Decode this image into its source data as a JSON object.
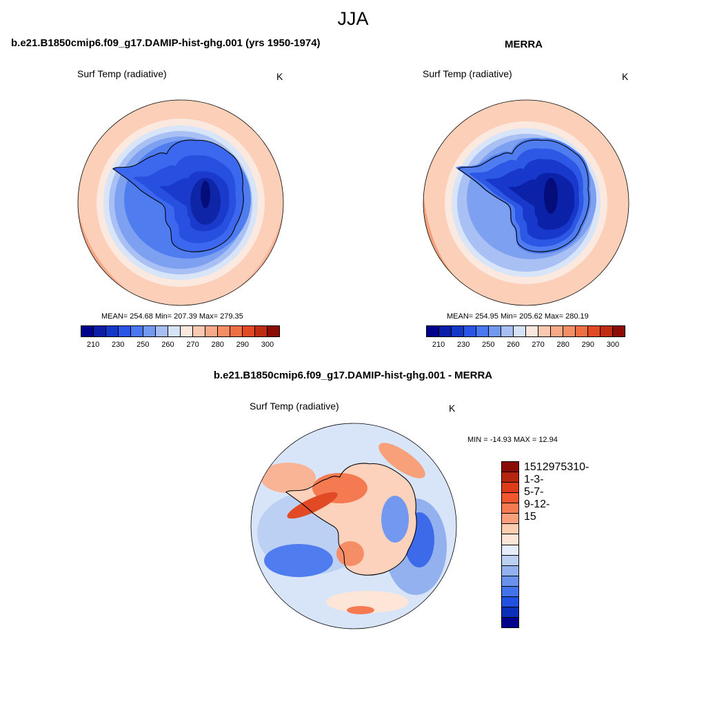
{
  "figure": {
    "title": "JJA"
  },
  "panels": {
    "model": {
      "title": "b.e21.B1850cmip6.f09_g17.DAMIP-hist-ghg.001 (yrs 1950-1974)",
      "variable": "Surf Temp (radiative)",
      "units": "K",
      "stats": "MEAN= 254.68  Min= 207.39  Max= 279.35"
    },
    "obs": {
      "title": "MERRA",
      "variable": "Surf Temp (radiative)",
      "units": "K",
      "stats": "MEAN= 254.95  Min= 205.62  Max= 280.19"
    },
    "diff": {
      "title": "b.e21.B1850cmip6.f09_g17.DAMIP-hist-ghg.001 - MERRA",
      "variable": "Surf Temp (radiative)",
      "units": "K",
      "stats": "MIN = -14.93 MAX =  12.94"
    }
  },
  "colorbar_abs": {
    "colors": [
      "#00008a",
      "#0a1ea8",
      "#1537c8",
      "#2a55e6",
      "#4a78f0",
      "#7398f0",
      "#a6bef4",
      "#d6e2f8",
      "#fbe7de",
      "#fcc9b0",
      "#f8aa88",
      "#f58d66",
      "#ef6f44",
      "#e24a26",
      "#c02b14",
      "#8b0c06"
    ],
    "tick_labels": [
      "210",
      "230",
      "250",
      "260",
      "270",
      "280",
      "290",
      "300"
    ]
  },
  "colorbar_diff": {
    "colors": [
      "#8b0c06",
      "#b52510",
      "#dd3b1a",
      "#f2562c",
      "#f57a52",
      "#f9a07c",
      "#fccdb1",
      "#fde6d8",
      "#e6eefb",
      "#bcd0f4",
      "#93b1ef",
      "#6a92ec",
      "#4373ea",
      "#2251e2",
      "#0b2fb8",
      "#00008a"
    ],
    "tick_labels": [
      "15",
      "12",
      "9",
      "7",
      "5",
      "3",
      "1",
      "0",
      "-1",
      "-3",
      "-5",
      "-7",
      "-9",
      "-12",
      "-15"
    ]
  }
}
